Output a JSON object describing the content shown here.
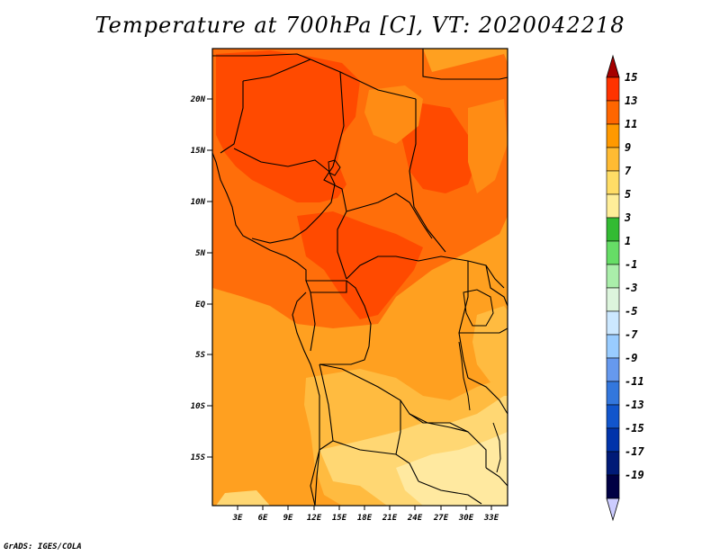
{
  "title": "Temperature at 700hPa [C], VT: 2020042218",
  "credit": "GrADS: IGES/COLA",
  "map": {
    "lat_labels": [
      "20N",
      "15N",
      "10N",
      "5N",
      "EQ",
      "5S",
      "10S",
      "15S"
    ],
    "lon_labels": [
      "3E",
      "6E",
      "9E",
      "12E",
      "15E",
      "18E",
      "21E",
      "24E",
      "27E",
      "30E",
      "33E"
    ]
  },
  "colorbar": {
    "labels": [
      "15",
      "13",
      "11",
      "9",
      "7",
      "5",
      "3",
      "1",
      "-1",
      "-3",
      "-5",
      "-7",
      "-9",
      "-11",
      "-13",
      "-15",
      "-17",
      "-19"
    ],
    "colors": [
      "#a50000",
      "#ff3300",
      "#ff6600",
      "#ff9900",
      "#ffbb33",
      "#ffdd66",
      "#ffee99",
      "#33bb33",
      "#66dd66",
      "#aaeeaa",
      "#ddf5dd",
      "#cce8ff",
      "#99ccff",
      "#6699ee",
      "#3377dd",
      "#1155cc",
      "#0033aa",
      "#001a77",
      "#000044",
      "#ccccff"
    ]
  },
  "colors": {
    "t13": "#ff4a00",
    "t11": "#ff6e0a",
    "t9": "#ffa020",
    "t7": "#ffbb40",
    "t5": "#ffd773",
    "t3": "#ffe9a0"
  }
}
